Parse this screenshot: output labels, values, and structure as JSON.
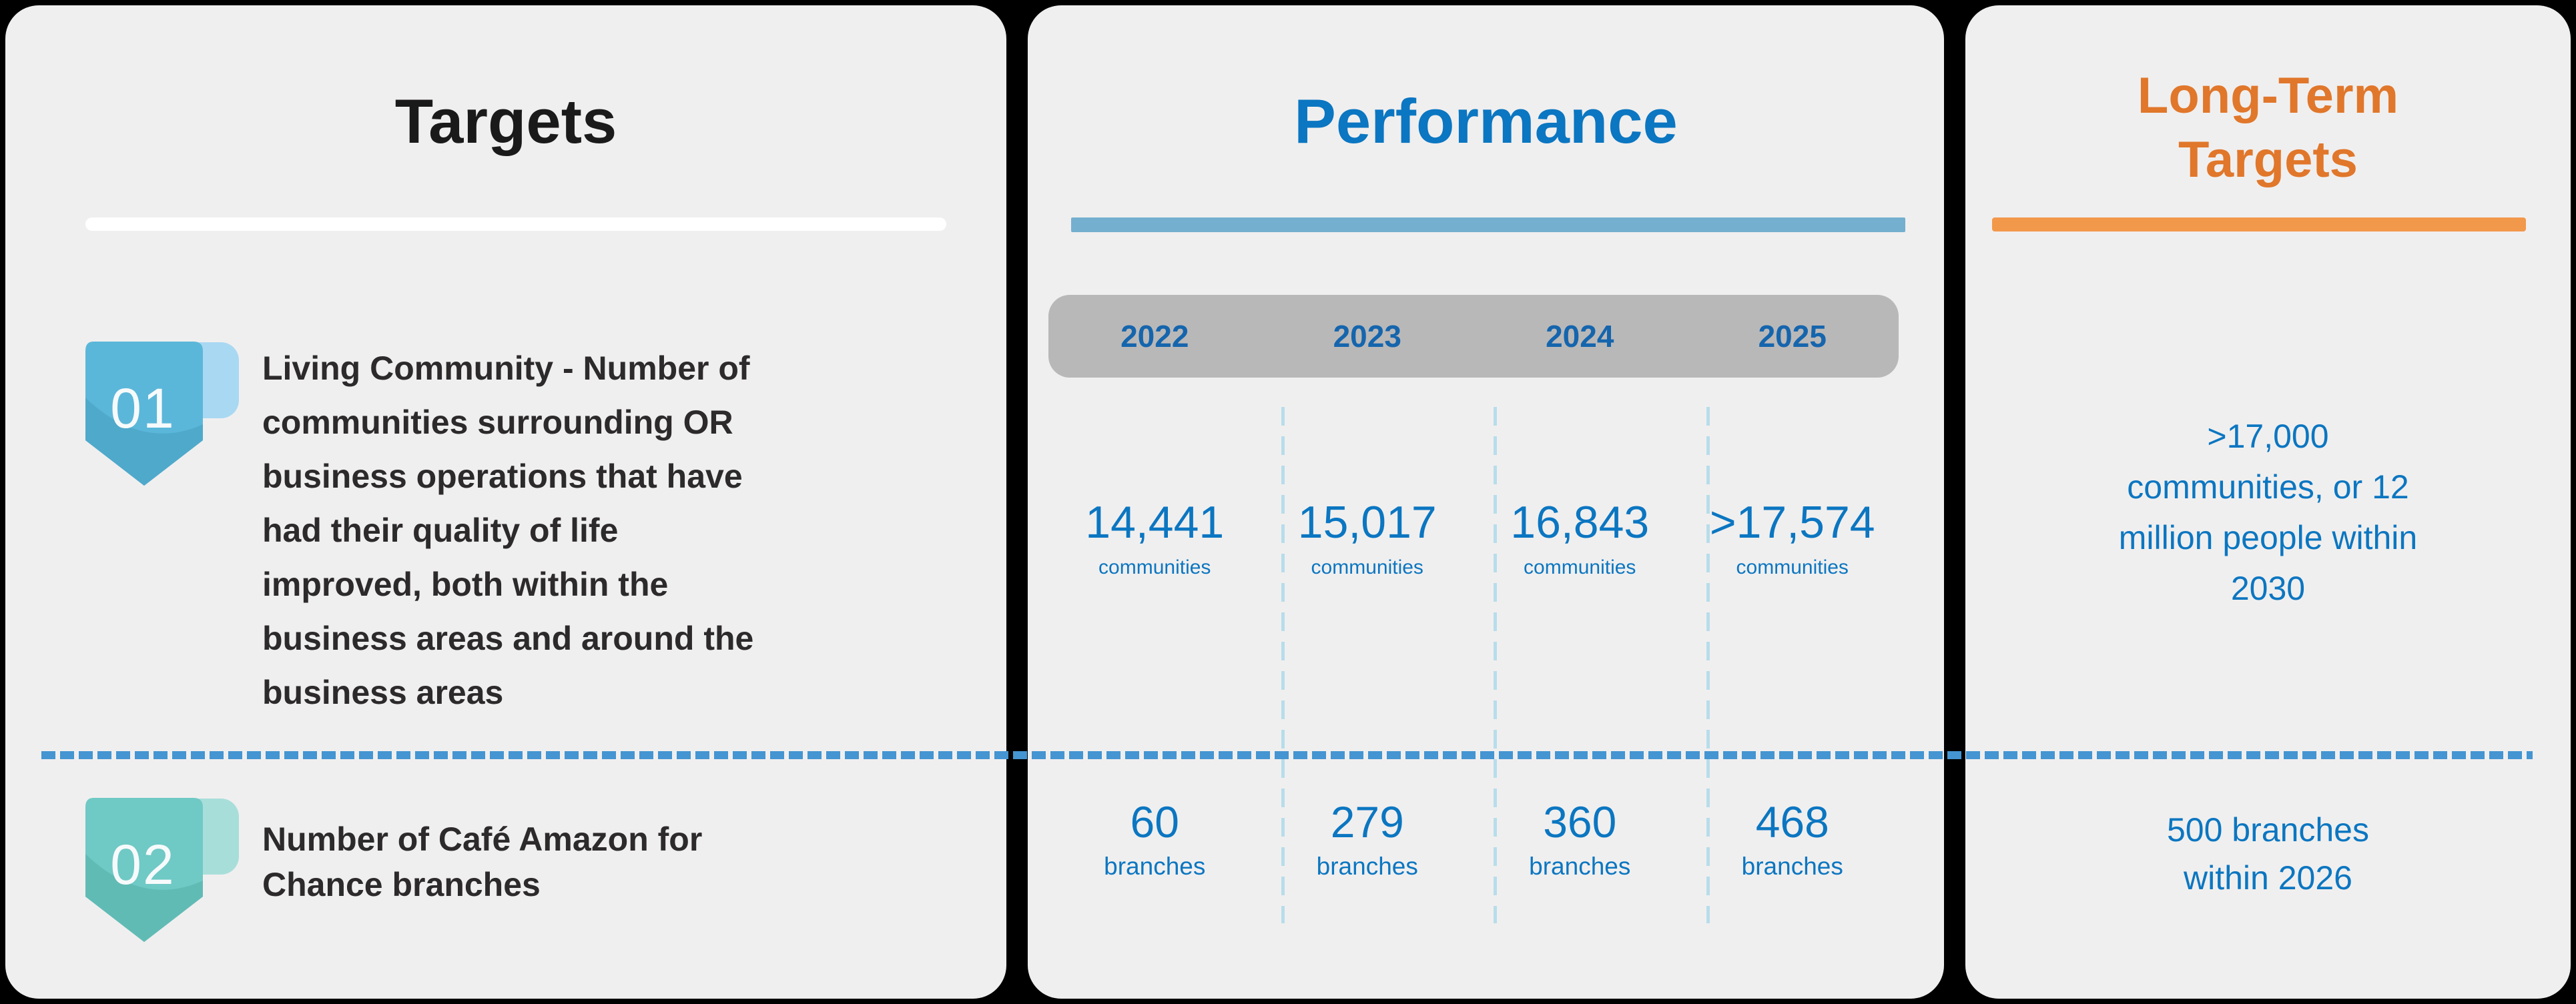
{
  "targets": {
    "title": "Targets",
    "items": [
      {
        "number": "01",
        "text": "Living Community - Number of communities surrounding OR business operations that have had their quality of life improved, both within the business areas and around the business areas",
        "lines": [
          "Living Community - Number of",
          "communities surrounding OR",
          "business operations that have",
          "had their quality of life",
          "improved, both within the",
          "business areas and around the",
          "business areas"
        ]
      },
      {
        "number": "02",
        "text": "Number of Café Amazon for Chance branches",
        "lines": [
          "Number of Café Amazon for",
          "Chance branches"
        ]
      }
    ]
  },
  "performance": {
    "title": "Performance",
    "years": [
      "2022",
      "2023",
      "2024",
      "2025"
    ],
    "rows": [
      {
        "unit": "communities",
        "values": [
          "14,441",
          "15,017",
          "16,843",
          ">17,574"
        ]
      },
      {
        "unit": "branches",
        "values": [
          "60",
          "279",
          "360",
          "468"
        ]
      }
    ]
  },
  "longterm": {
    "title": "Long-Term Targets",
    "title_lines": [
      "Long-Term",
      "Targets"
    ],
    "items": [
      {
        "text": ">17,000 communities, or 12 million people within 2030",
        "lines": [
          ">17,000",
          "communities, or 12",
          "million people within",
          "2030"
        ]
      },
      {
        "text": "500 branches within 2026",
        "lines": [
          "500 branches",
          "within 2026"
        ]
      }
    ]
  },
  "colors": {
    "page-bg": "#000000",
    "panel-bg": "#F0EFEF",
    "title-dark": "#1B1A1A",
    "body-text": "#2C2A2B",
    "blue": "#0B76C1",
    "year-blue": "#1565AD",
    "underline-white": "#FFFFFF",
    "underline-blue": "#74AFCF",
    "underline-orange": "#F2984B",
    "orange": "#E0772B",
    "gray-bar": "#B9B8B8",
    "dash-blue": "#4495D1",
    "dash-light": "#B7DDEB",
    "badge1-main": "#5BB7D9",
    "badge1-shade": "#4FA9CB",
    "badge1-tab": "#A9D8F2",
    "badge2-main": "#6FC9C5",
    "badge2-shade": "#61BBB5",
    "badge2-tab": "#A8DEDA",
    "badge-number": "#F7FAFB"
  }
}
